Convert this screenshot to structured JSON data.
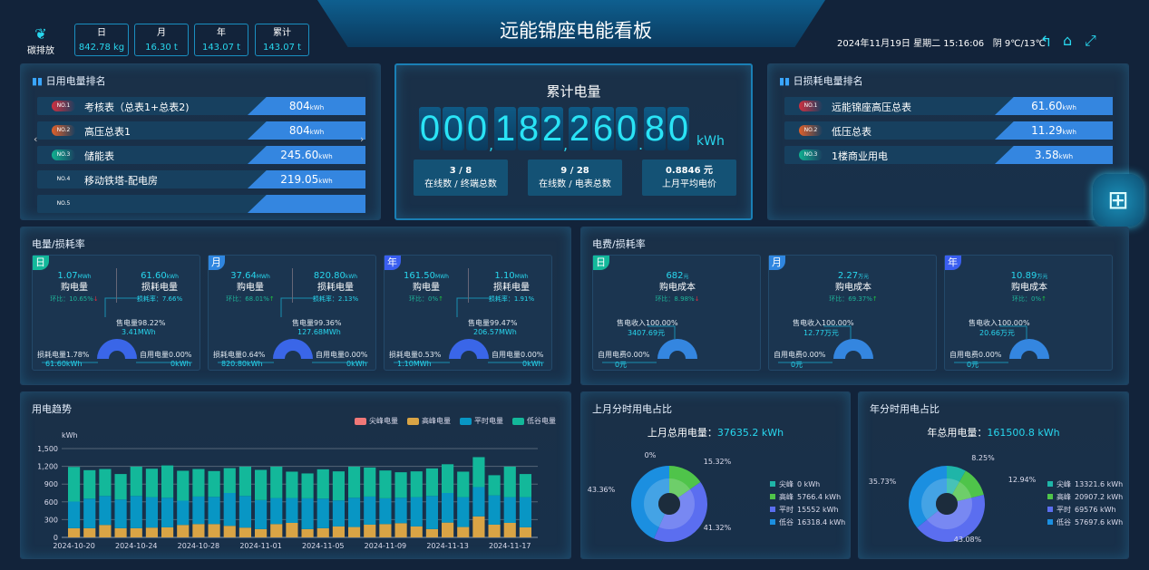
{
  "header": {
    "title": "远能锦座电能看板",
    "datetime": "2024年11月19日 星期二 15:16:06",
    "weather": "阴  9℃/13℃",
    "carbon": {
      "label": "碳排放",
      "items": [
        {
          "label": "日",
          "value": "842.78 kg"
        },
        {
          "label": "月",
          "value": "16.30 t"
        },
        {
          "label": "年",
          "value": "143.07 t"
        },
        {
          "label": "累计",
          "value": "143.07 t"
        }
      ]
    },
    "icons": [
      "back-icon",
      "home-icon",
      "fullscreen-icon"
    ]
  },
  "daily_rank": {
    "title": "日用电量排名",
    "unit": "kWh",
    "items": [
      {
        "no": "NO.1",
        "name": "考核表（总表1+总表2)",
        "value": "804"
      },
      {
        "no": "NO.2",
        "name": "高压总表1",
        "value": "804"
      },
      {
        "no": "NO.3",
        "name": "储能表",
        "value": "245.60"
      },
      {
        "no": "NO.4",
        "name": "移动铁塔-配电房",
        "value": "219.05"
      },
      {
        "no": "NO.5",
        "name": "",
        "value": ""
      }
    ]
  },
  "total": {
    "title": "累计电量",
    "digits": [
      "0",
      "0",
      "0",
      "1",
      "8",
      "2",
      "2",
      "6",
      "0",
      "8",
      "0"
    ],
    "unit": "kWh",
    "stats": [
      {
        "value": "3 / 8",
        "label": "在线数 / 终端总数"
      },
      {
        "value": "9 / 28",
        "label": "在线数 / 电表总数"
      },
      {
        "value": "0.8846 元",
        "label": "上月平均电价"
      }
    ]
  },
  "loss_rank": {
    "title": "日损耗电量排名",
    "unit": "kWh",
    "items": [
      {
        "no": "NO.1",
        "name": "远能锦座高压总表",
        "value": "61.60"
      },
      {
        "no": "NO.2",
        "name": "低压总表",
        "value": "11.29"
      },
      {
        "no": "NO.3",
        "name": "1楼商业用电",
        "value": "3.58"
      }
    ]
  },
  "energy_loss": {
    "title": "电量/损耗率",
    "cards": [
      {
        "tag": "日",
        "buy": "1.07",
        "buy_unit": "MWh",
        "buy_label": "购电量",
        "ratio": "环比：10.65%",
        "trend": "down",
        "loss": "61.60",
        "loss_unit": "kWh",
        "loss_label": "损耗电量",
        "loss_rate": "损耗率：7.66%",
        "sold_label": "售电量98.22%",
        "sold_value": "3.41MWh",
        "lossg_label": "损耗电量1.78%",
        "lossg_value": "61.60kWh",
        "self_label": "自用电量0.00%",
        "self_value": "0kWh",
        "sold_pct": 98.22
      },
      {
        "tag": "月",
        "buy": "37.64",
        "buy_unit": "MWh",
        "buy_label": "购电量",
        "ratio": "环比：68.01%",
        "trend": "up",
        "loss": "820.80",
        "loss_unit": "kWh",
        "loss_label": "损耗电量",
        "loss_rate": "损耗率：2.13%",
        "sold_label": "售电量99.36%",
        "sold_value": "127.68MWh",
        "lossg_label": "损耗电量0.64%",
        "lossg_value": "820.80kWh",
        "self_label": "自用电量0.00%",
        "self_value": "0kWh",
        "sold_pct": 99.36
      },
      {
        "tag": "年",
        "buy": "161.50",
        "buy_unit": "MWh",
        "buy_label": "购电量",
        "ratio": "环比：0%",
        "trend": "up",
        "loss": "1.10",
        "loss_unit": "MWh",
        "loss_label": "损耗电量",
        "loss_rate": "损耗率：1.91%",
        "sold_label": "售电量99.47%",
        "sold_value": "206.57MWh",
        "lossg_label": "损耗电量0.53%",
        "lossg_value": "1.10MWh",
        "self_label": "自用电量0.00%",
        "self_value": "0kWh",
        "sold_pct": 99.47
      }
    ]
  },
  "cost": {
    "title": "电费/损耗率",
    "cards": [
      {
        "tag": "日",
        "value": "682",
        "unit": "元",
        "label": "购电成本",
        "ratio": "环比：8.98%",
        "trend": "down",
        "sold_label": "售电收入100.00%",
        "sold_value": "3407.69元",
        "self_label": "自用电费0.00%",
        "self_value": "0元",
        "sold_pct": 100
      },
      {
        "tag": "月",
        "value": "2.27",
        "unit": "万元",
        "label": "购电成本",
        "ratio": "环比：69.37%",
        "trend": "up",
        "sold_label": "售电收入100.00%",
        "sold_value": "12.77万元",
        "self_label": "自用电费0.00%",
        "self_value": "0元",
        "sold_pct": 100
      },
      {
        "tag": "年",
        "value": "10.89",
        "unit": "万元",
        "label": "购电成本",
        "ratio": "环比：0%",
        "trend": "up",
        "sold_label": "售电收入100.00%",
        "sold_value": "20.66万元",
        "self_label": "自用电费0.00%",
        "self_value": "0元",
        "sold_pct": 100
      }
    ]
  },
  "chart_data": [
    {
      "type": "bar",
      "stacked": true,
      "title": "用电趋势",
      "ylabel": "kWh",
      "ylim": [
        0,
        1500
      ],
      "yticks": [
        "0",
        "300",
        "600",
        "900",
        "1,200",
        "1,500"
      ],
      "grid": true,
      "legend": "top-right",
      "xticks": [
        "2024-10-20",
        "2024-10-24",
        "2024-10-28",
        "2024-11-01",
        "2024-11-05",
        "2024-11-09",
        "2024-11-13",
        "2024-11-17"
      ],
      "categories": [
        "2024-10-20",
        "2024-10-21",
        "2024-10-22",
        "2024-10-23",
        "2024-10-24",
        "2024-10-25",
        "2024-10-26",
        "2024-10-27",
        "2024-10-28",
        "2024-10-29",
        "2024-10-30",
        "2024-10-31",
        "2024-11-01",
        "2024-11-02",
        "2024-11-03",
        "2024-11-04",
        "2024-11-05",
        "2024-11-06",
        "2024-11-07",
        "2024-11-08",
        "2024-11-09",
        "2024-11-10",
        "2024-11-11",
        "2024-11-12",
        "2024-11-13",
        "2024-11-14",
        "2024-11-15",
        "2024-11-16",
        "2024-11-17",
        "2024-11-18"
      ],
      "series": [
        {
          "name": "尖峰电量",
          "color": "#f07878",
          "values": [
            0,
            0,
            0,
            0,
            0,
            0,
            0,
            0,
            0,
            0,
            0,
            0,
            0,
            0,
            0,
            0,
            0,
            0,
            0,
            0,
            0,
            0,
            0,
            0,
            0,
            0,
            0,
            0,
            0,
            0
          ]
        },
        {
          "name": "高峰电量",
          "color": "#d9a445",
          "values": [
            155,
            155,
            210,
            155,
            155,
            165,
            170,
            210,
            225,
            225,
            195,
            165,
            140,
            225,
            245,
            140,
            155,
            185,
            175,
            215,
            225,
            240,
            185,
            140,
            250,
            175,
            355,
            215,
            245,
            170
          ]
        },
        {
          "name": "平时电量",
          "color": "#0896c4",
          "values": [
            450,
            500,
            490,
            485,
            545,
            515,
            500,
            410,
            465,
            460,
            555,
            535,
            490,
            440,
            420,
            520,
            500,
            440,
            495,
            475,
            435,
            430,
            495,
            560,
            500,
            505,
            495,
            495,
            435,
            510
          ]
        },
        {
          "name": "低谷电量",
          "color": "#13b89a",
          "values": [
            585,
            480,
            455,
            430,
            495,
            480,
            545,
            505,
            465,
            435,
            420,
            495,
            510,
            530,
            445,
            420,
            495,
            490,
            525,
            490,
            470,
            430,
            435,
            465,
            485,
            430,
            505,
            340,
            515,
            390
          ]
        }
      ]
    },
    {
      "type": "pie",
      "title": "上月分时用电占比",
      "total_label": "上月总用电量：",
      "total_value": "37635.2 kWh",
      "labels": [
        "尖峰",
        "高峰",
        "平时",
        "低谷"
      ],
      "values": [
        0,
        5766.4,
        15552,
        16318.4
      ],
      "value_text": [
        "0 kWh",
        "5766.4 kWh",
        "15552 kWh",
        "16318.4 kWh"
      ],
      "percents": [
        "0%",
        "15.32%",
        "41.32%",
        "43.36%"
      ],
      "colors": [
        "#1fb5a8",
        "#4fc44a",
        "#5b6ef0",
        "#1b8fe0"
      ]
    },
    {
      "type": "pie",
      "title": "年分时用电占比",
      "total_label": "年总用电量：",
      "total_value": "161500.8 kWh",
      "labels": [
        "尖峰",
        "高峰",
        "平时",
        "低谷"
      ],
      "values": [
        13321.6,
        20907.2,
        69576,
        57697.6
      ],
      "value_text": [
        "13321.6 kWh",
        "20907.2 kWh",
        "69576 kWh",
        "57697.6 kWh"
      ],
      "percents": [
        "8.25%",
        "12.94%",
        "43.08%",
        "35.73%"
      ],
      "colors": [
        "#1fb5a8",
        "#4fc44a",
        "#5b6ef0",
        "#1b8fe0"
      ]
    }
  ],
  "colors": {
    "accent": "#28d7ee",
    "day_tag": "#13b89a",
    "month_tag": "#2f86e0",
    "year_tag": "#3a5ef0"
  }
}
